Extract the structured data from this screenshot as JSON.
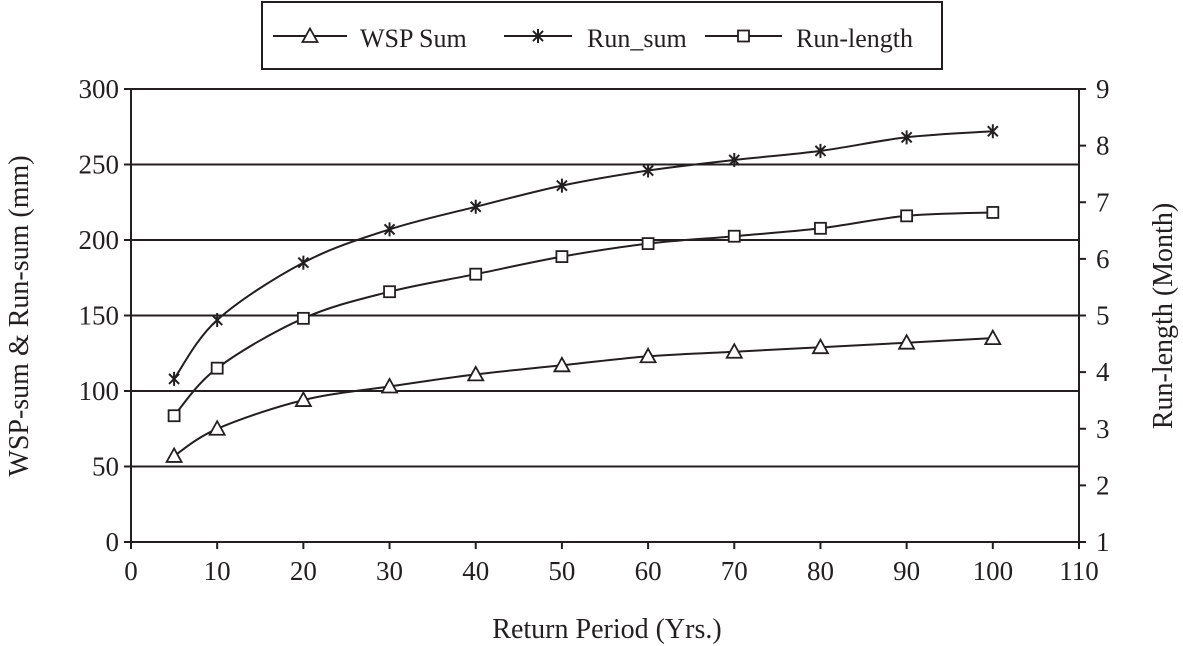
{
  "chart_data": {
    "type": "line",
    "xlabel": "Return Period (Yrs.)",
    "ylabel_left": "WSP-sum & Run-sum (mm)",
    "ylabel_right": "Run-length (Month)",
    "xlim": [
      0,
      110
    ],
    "x_ticks": [
      "0",
      "10",
      "20",
      "30",
      "40",
      "50",
      "60",
      "70",
      "80",
      "90",
      "100",
      "110"
    ],
    "ylim_left": [
      0,
      300
    ],
    "y_ticks_left": [
      "0",
      "50",
      "100",
      "150",
      "200",
      "250",
      "300"
    ],
    "ylim_right": [
      1,
      9
    ],
    "y_ticks_right": [
      "1",
      "2",
      "3",
      "4",
      "5",
      "6",
      "7",
      "8",
      "9"
    ],
    "grid": "horizontal",
    "legend_position": "top",
    "series": [
      {
        "name": "WSP Sum",
        "axis": "left",
        "marker": "triangle",
        "x": [
          5,
          10,
          20,
          30,
          40,
          50,
          60,
          70,
          80,
          90,
          100
        ],
        "values": [
          57,
          75,
          94,
          103,
          111,
          117,
          123,
          126,
          129,
          132,
          135
        ]
      },
      {
        "name": "Run_sum",
        "axis": "left",
        "marker": "star",
        "x": [
          5,
          10,
          20,
          30,
          40,
          50,
          60,
          70,
          80,
          90,
          100
        ],
        "values": [
          108,
          147,
          185,
          207,
          222,
          236,
          246,
          253,
          259,
          268,
          272
        ]
      },
      {
        "name": "Run-length",
        "axis": "right",
        "marker": "square",
        "x": [
          5,
          10,
          20,
          30,
          40,
          50,
          60,
          70,
          80,
          90,
          100
        ],
        "values": [
          3.23,
          4.07,
          4.95,
          5.42,
          5.73,
          6.04,
          6.27,
          6.4,
          6.54,
          6.76,
          6.82
        ]
      }
    ]
  }
}
